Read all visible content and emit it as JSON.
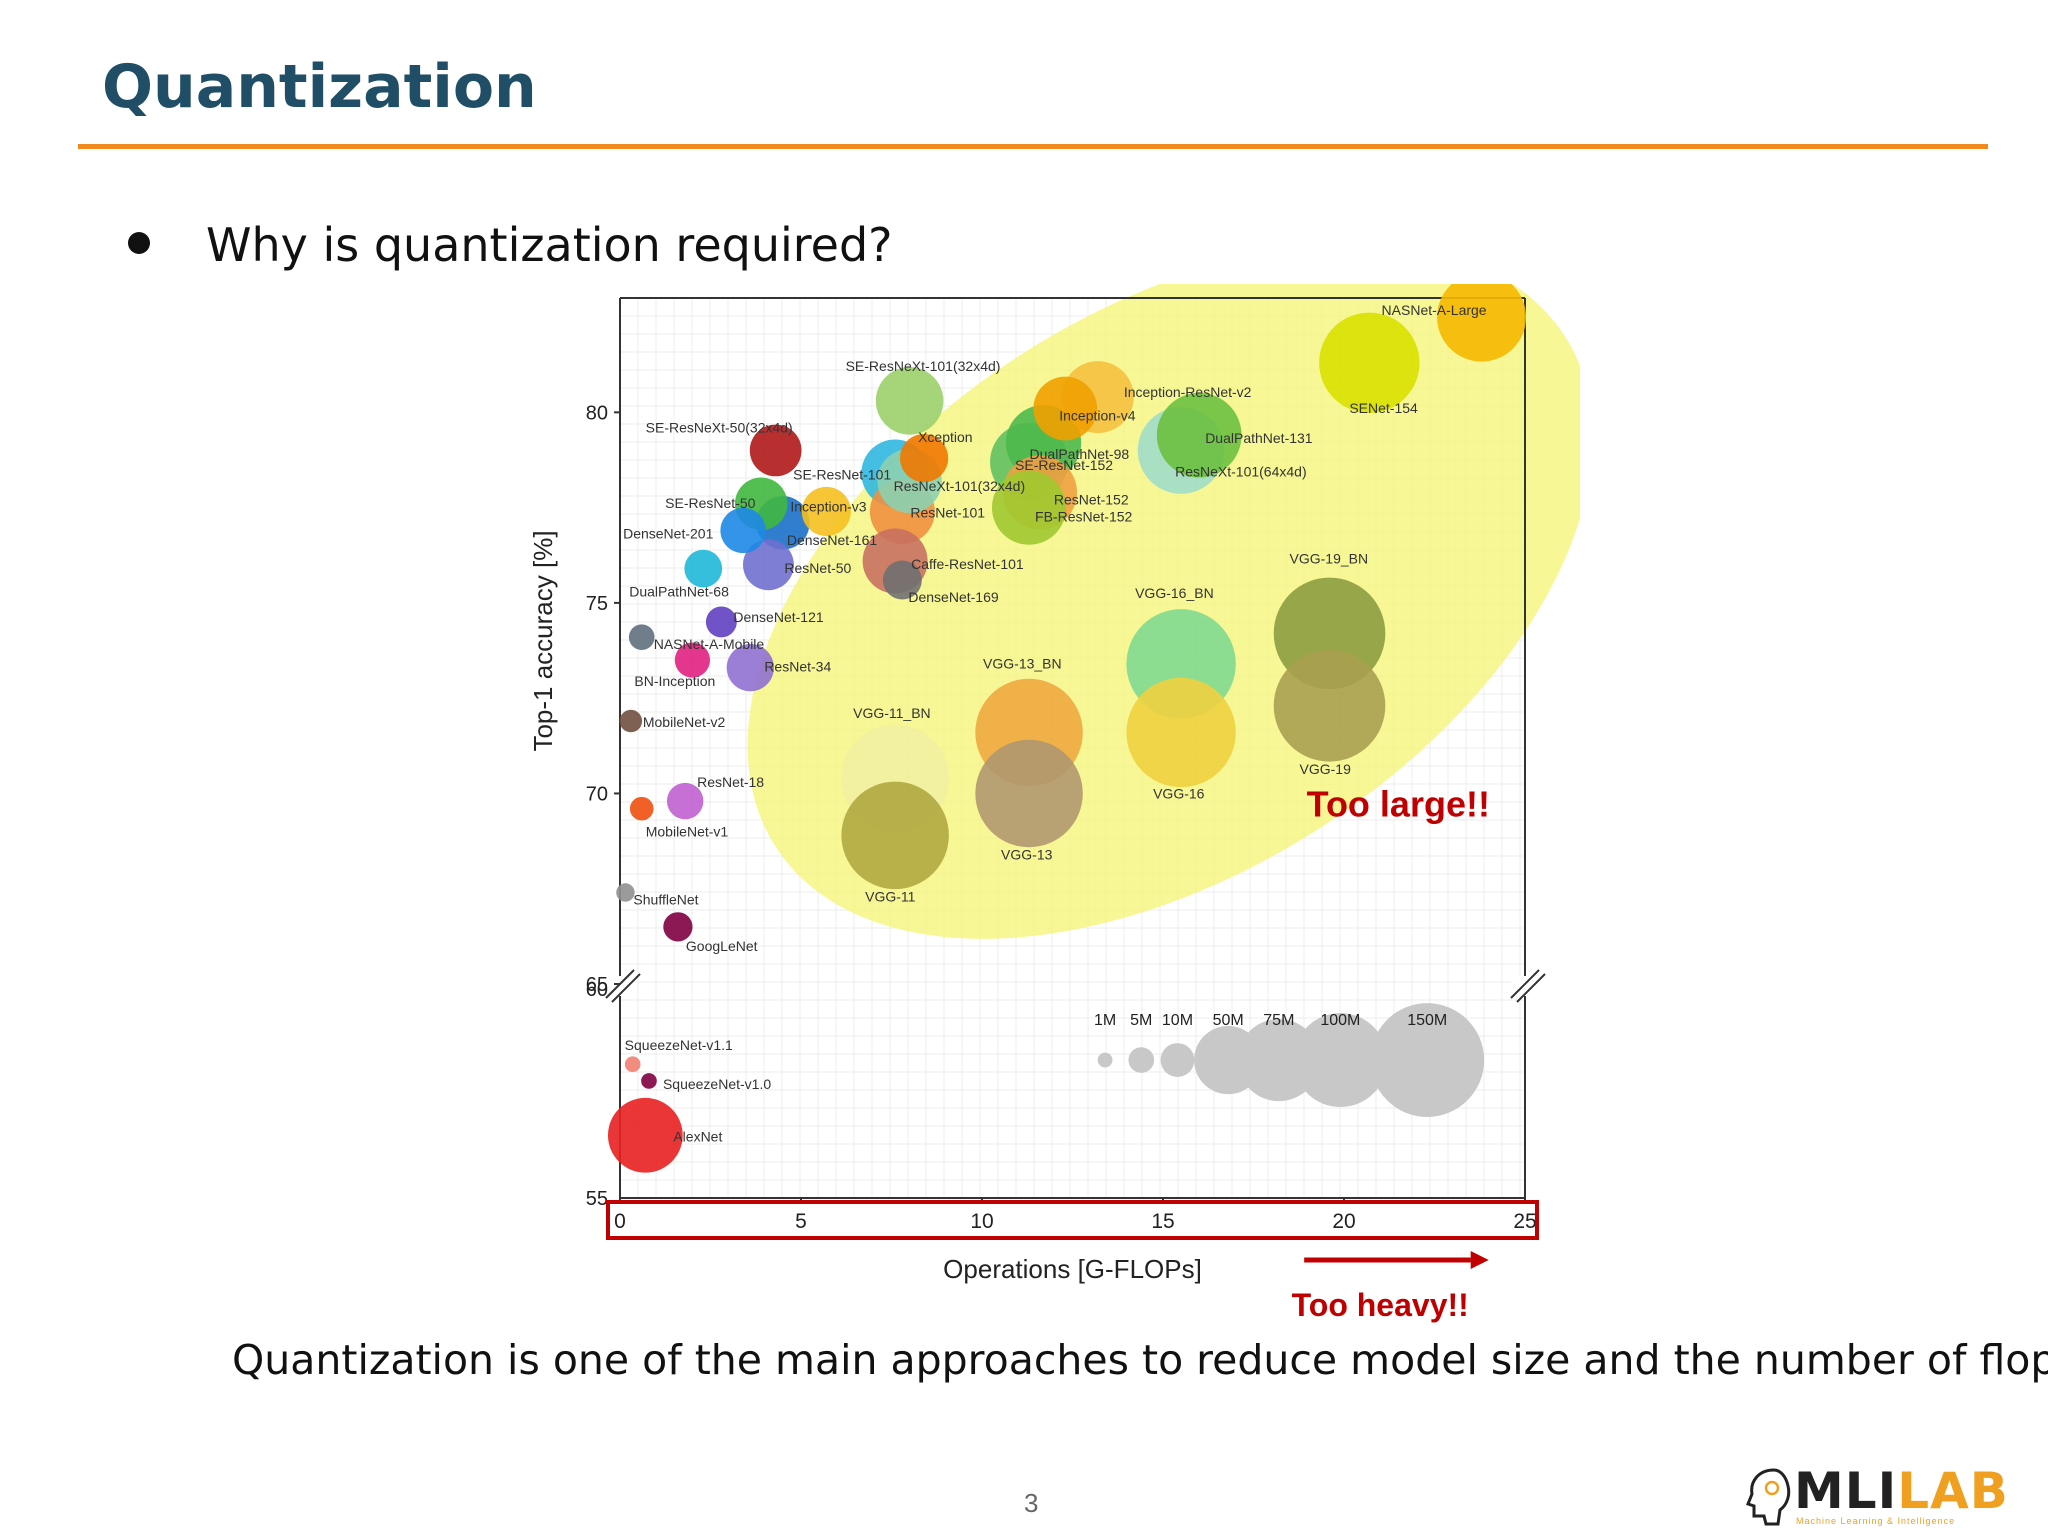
{
  "slide": {
    "title": "Quantization",
    "bullet": "Why is quantization required?",
    "caption": "Quantization is one of the main approaches to reduce model size and the number of flops",
    "page_number": "3",
    "accent_color": "#f08a1e",
    "title_color": "#1f4e66"
  },
  "logo": {
    "text_part1": "MLI",
    "text_part2": "LAB",
    "subtitle": "Machine Learning & Intelligence"
  },
  "chart_data": {
    "type": "scatter",
    "xlabel": "Operations [G-FLOPs]",
    "ylabel": "Top-1 accuracy [%]",
    "xlim": [
      0,
      25
    ],
    "ylim_upper": [
      65,
      83
    ],
    "ylim_lower": [
      55,
      60
    ],
    "x_ticks": [
      "0",
      "5",
      "10",
      "15",
      "20",
      "25"
    ],
    "y_ticks_upper": [
      "80",
      "75",
      "70",
      "65"
    ],
    "y_ticks_lower": [
      "60",
      "55"
    ],
    "grid": true,
    "annotations": {
      "too_large": "Too large!!",
      "too_heavy": "Too heavy!!"
    },
    "size_legend": [
      {
        "label": "1M",
        "params": 1
      },
      {
        "label": "5M",
        "params": 5
      },
      {
        "label": "10M",
        "params": 10
      },
      {
        "label": "50M",
        "params": 50
      },
      {
        "label": "75M",
        "params": 75
      },
      {
        "label": "100M",
        "params": 100
      },
      {
        "label": "150M",
        "params": 150
      }
    ],
    "points": [
      {
        "name": "NASNet-A-Large",
        "x": 23.8,
        "y": 82.5,
        "params": 89,
        "color": "#f5b800"
      },
      {
        "name": "SENet-154",
        "x": 20.7,
        "y": 81.3,
        "params": 115,
        "color": "#d8e000"
      },
      {
        "name": "SE-ResNeXt-101(32x4d)",
        "x": 8.0,
        "y": 80.3,
        "params": 49,
        "color": "#9ccf6a"
      },
      {
        "name": "SE-ResNeXt-50(32x4d)",
        "x": 4.3,
        "y": 79.0,
        "params": 27,
        "color": "#b01818"
      },
      {
        "name": "Inception-ResNet-v2",
        "x": 13.2,
        "y": 80.4,
        "params": 56,
        "color": "#f5c040"
      },
      {
        "name": "Inception-v4",
        "x": 12.3,
        "y": 80.1,
        "params": 43,
        "color": "#f0a000"
      },
      {
        "name": "DualPathNet-98",
        "x": 11.7,
        "y": 79.2,
        "params": 62,
        "color": "#4cb84c"
      },
      {
        "name": "DualPathNet-131",
        "x": 16.0,
        "y": 79.4,
        "params": 80,
        "color": "#6cc040"
      },
      {
        "name": "ResNeXt-101(64x4d)",
        "x": 15.5,
        "y": 79.0,
        "params": 84,
        "color": "#a0dcc8"
      },
      {
        "name": "Xception",
        "x": 8.4,
        "y": 78.8,
        "params": 23,
        "color": "#f07800"
      },
      {
        "name": "SE-ResNet-101",
        "x": 7.6,
        "y": 78.4,
        "params": 49,
        "color": "#30b8e0"
      },
      {
        "name": "SE-ResNet-152",
        "x": 11.3,
        "y": 78.7,
        "params": 67,
        "color": "#60c060"
      },
      {
        "name": "ResNeXt-101(32x4d)",
        "x": 8.0,
        "y": 78.2,
        "params": 44,
        "color": "#8cd0b0"
      },
      {
        "name": "ResNet-152",
        "x": 11.6,
        "y": 77.9,
        "params": 60,
        "color": "#f0a040"
      },
      {
        "name": "SE-ResNet-50",
        "x": 3.9,
        "y": 77.6,
        "params": 28,
        "color": "#40b840"
      },
      {
        "name": "Inception-v3",
        "x": 5.7,
        "y": 77.4,
        "params": 24,
        "color": "#f5c020"
      },
      {
        "name": "DenseNet-201",
        "x": 3.4,
        "y": 76.9,
        "params": 20,
        "color": "#1e88e5"
      },
      {
        "name": "DenseNet-161",
        "x": 4.5,
        "y": 77.1,
        "params": 29,
        "color": "#1a70c8"
      },
      {
        "name": "ResNet-101",
        "x": 7.8,
        "y": 77.4,
        "params": 45,
        "color": "#f09040"
      },
      {
        "name": "FB-ResNet-152",
        "x": 11.3,
        "y": 77.5,
        "params": 60,
        "color": "#a0c830"
      },
      {
        "name": "Caffe-ResNet-101",
        "x": 7.6,
        "y": 76.1,
        "params": 45,
        "color": "#c87060"
      },
      {
        "name": "DenseNet-169",
        "x": 7.8,
        "y": 75.6,
        "params": 14,
        "color": "#707070"
      },
      {
        "name": "ResNet-50",
        "x": 4.1,
        "y": 76.0,
        "params": 26,
        "color": "#7070d0"
      },
      {
        "name": "DualPathNet-68",
        "x": 2.3,
        "y": 75.9,
        "params": 13,
        "color": "#20b8d8"
      },
      {
        "name": "DenseNet-121",
        "x": 2.8,
        "y": 74.5,
        "params": 8,
        "color": "#6040c0"
      },
      {
        "name": "NASNet-A-Mobile",
        "x": 0.6,
        "y": 74.1,
        "params": 5,
        "color": "#607080"
      },
      {
        "name": "BN-Inception",
        "x": 2.0,
        "y": 73.5,
        "params": 11,
        "color": "#e02080"
      },
      {
        "name": "ResNet-34",
        "x": 3.6,
        "y": 73.3,
        "params": 22,
        "color": "#9070d0"
      },
      {
        "name": "MobileNet-v2",
        "x": 0.3,
        "y": 71.9,
        "params": 3.5,
        "color": "#705040"
      },
      {
        "name": "ResNet-18",
        "x": 1.8,
        "y": 69.8,
        "params": 12,
        "color": "#c060d0"
      },
      {
        "name": "MobileNet-v1",
        "x": 0.6,
        "y": 69.6,
        "params": 4,
        "color": "#f05010"
      },
      {
        "name": "ShuffleNet",
        "x": 0.15,
        "y": 67.4,
        "params": 2,
        "color": "#909090"
      },
      {
        "name": "GoogLeNet",
        "x": 1.6,
        "y": 66.5,
        "params": 7,
        "color": "#800040"
      },
      {
        "name": "VGG-19_BN",
        "x": 19.6,
        "y": 74.2,
        "params": 144,
        "color": "#8c9c40"
      },
      {
        "name": "VGG-19",
        "x": 19.6,
        "y": 72.3,
        "params": 144,
        "color": "#a8a050"
      },
      {
        "name": "VGG-16_BN",
        "x": 15.5,
        "y": 73.4,
        "params": 138,
        "color": "#80d890"
      },
      {
        "name": "VGG-16",
        "x": 15.5,
        "y": 71.6,
        "params": 138,
        "color": "#f0d040"
      },
      {
        "name": "VGG-13_BN",
        "x": 11.3,
        "y": 71.6,
        "params": 133,
        "color": "#f0a840"
      },
      {
        "name": "VGG-13",
        "x": 11.3,
        "y": 70.0,
        "params": 133,
        "color": "#b09870"
      },
      {
        "name": "VGG-11_BN",
        "x": 7.6,
        "y": 70.4,
        "params": 133,
        "color": "#f0f0a0"
      },
      {
        "name": "VGG-11",
        "x": 7.6,
        "y": 68.9,
        "params": 133,
        "color": "#b0a840"
      },
      {
        "name": "SqueezeNet-v1.1",
        "x": 0.35,
        "y": 58.2,
        "params": 1.2,
        "color": "#f08070"
      },
      {
        "name": "SqueezeNet-v1.0",
        "x": 0.8,
        "y": 57.8,
        "params": 1.2,
        "color": "#800040"
      },
      {
        "name": "AlexNet",
        "x": 0.7,
        "y": 56.5,
        "params": 61,
        "color": "#e82020"
      }
    ]
  }
}
